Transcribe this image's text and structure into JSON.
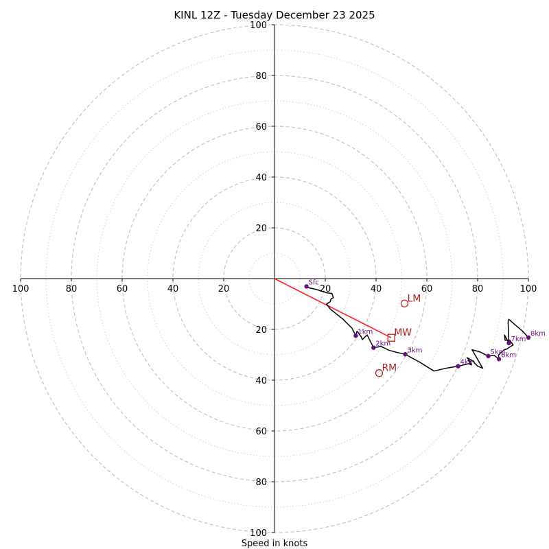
{
  "chart_data": {
    "type": "hodograph",
    "title": "KINL 12Z - Tuesday December 23 2025",
    "xlabel": "Speed in knots",
    "max_speed": 100,
    "rings_dashed": [
      20,
      40,
      60,
      80,
      100
    ],
    "rings_dotted": [
      10,
      30,
      50,
      70,
      90
    ],
    "tick_labels": [
      "20",
      "40",
      "60",
      "80",
      "100"
    ],
    "trace": [
      [
        12.5,
        -3.2
      ],
      [
        13.2,
        -3.5
      ],
      [
        14.5,
        -3.8
      ],
      [
        16.5,
        -4.3
      ],
      [
        18.5,
        -4.9
      ],
      [
        20.5,
        -5.6
      ],
      [
        22.6,
        -5.8
      ],
      [
        23.2,
        -7.5
      ],
      [
        22.3,
        -8.0
      ],
      [
        21.9,
        -9.1
      ],
      [
        20.5,
        -10.0
      ],
      [
        22.0,
        -12.0
      ],
      [
        24.5,
        -14.0
      ],
      [
        27.0,
        -16.0
      ],
      [
        29.0,
        -18.0
      ],
      [
        30.5,
        -19.5
      ],
      [
        32.0,
        -22.5
      ],
      [
        32.5,
        -20.7
      ],
      [
        34.2,
        -23.0
      ],
      [
        34.6,
        -24.0
      ],
      [
        36.5,
        -22.2
      ],
      [
        39.0,
        -27.2
      ],
      [
        42.0,
        -26.7
      ],
      [
        45.0,
        -28.2
      ],
      [
        48.0,
        -29.0
      ],
      [
        51.5,
        -29.8
      ],
      [
        57.0,
        -32.8
      ],
      [
        62.8,
        -36.4
      ],
      [
        68.0,
        -35.2
      ],
      [
        72.3,
        -34.5
      ],
      [
        76.5,
        -33.5
      ],
      [
        77.6,
        -34.0
      ],
      [
        76.3,
        -32.2
      ],
      [
        77.2,
        -32.8
      ],
      [
        75.8,
        -31.1
      ],
      [
        77.8,
        -32.2
      ],
      [
        80.0,
        -34.5
      ],
      [
        82.0,
        -35.3
      ],
      [
        77.8,
        -28.0
      ],
      [
        81.0,
        -28.9
      ],
      [
        84.2,
        -30.5
      ],
      [
        86.5,
        -30.2
      ],
      [
        88.4,
        -31.7
      ],
      [
        88.2,
        -30.2
      ],
      [
        89.0,
        -29.3
      ],
      [
        90.5,
        -28.0
      ],
      [
        91.5,
        -27.7
      ],
      [
        94.0,
        -26.1
      ],
      [
        92.6,
        -24.2
      ],
      [
        90.8,
        -24.3
      ],
      [
        90.6,
        -22.2
      ],
      [
        92.3,
        -25.4
      ],
      [
        92.0,
        -17.0
      ],
      [
        92.3,
        -16.0
      ],
      [
        94.5,
        -18.0
      ],
      [
        97.5,
        -20.5
      ],
      [
        100.0,
        -23.2
      ]
    ],
    "height_points": [
      {
        "label": "Sfc",
        "u": 12.6,
        "v": -3.1
      },
      {
        "label": "1km",
        "u": 32.0,
        "v": -22.5
      },
      {
        "label": "2km",
        "u": 39.0,
        "v": -27.2
      },
      {
        "label": "3km",
        "u": 51.5,
        "v": -29.8
      },
      {
        "label": "4km",
        "u": 72.3,
        "v": -34.5
      },
      {
        "label": "5km",
        "u": 84.2,
        "v": -30.5
      },
      {
        "label": "6km",
        "u": 88.4,
        "v": -31.7
      },
      {
        "label": "7km",
        "u": 92.3,
        "v": -25.4
      },
      {
        "label": "8km",
        "u": 100.0,
        "v": -23.2
      }
    ],
    "storm_motion": [
      {
        "label": "LM",
        "u": 51.2,
        "v": -9.8,
        "marker": "circle"
      },
      {
        "label": "MW",
        "u": 46.0,
        "v": -23.3,
        "marker": "square"
      },
      {
        "label": "RM",
        "u": 41.2,
        "v": -37.2,
        "marker": "circle"
      }
    ],
    "shear_vector": {
      "from": [
        0,
        0
      ],
      "to": [
        46.0,
        -23.3
      ]
    },
    "colors": {
      "trace": "#000000",
      "points": "#6a0f7f",
      "storm": "#b22222",
      "shear": "#ff1f1f",
      "grid": "#bcbcbc"
    }
  }
}
